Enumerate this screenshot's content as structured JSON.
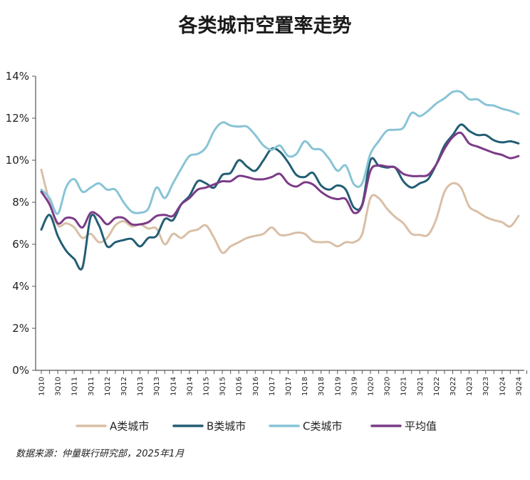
{
  "title": "各类城市空置率走势",
  "source": "数据来源：仲量联行研究部，2025年1月",
  "chart_data": {
    "type": "line",
    "ylim": [
      0,
      14
    ],
    "yticks": [
      0,
      2,
      4,
      6,
      8,
      10,
      12,
      14
    ],
    "ytick_labels": [
      "0%",
      "2%",
      "4%",
      "6%",
      "8%",
      "10%",
      "12%",
      "14%"
    ],
    "grid": false,
    "legend": "bottom",
    "x_labels": [
      "1Q10",
      "3Q10",
      "1Q11",
      "3Q11",
      "1Q12",
      "3Q12",
      "1Q13",
      "3Q13",
      "1Q14",
      "3Q14",
      "1Q15",
      "3Q15",
      "1Q16",
      "3Q16",
      "1Q17",
      "3Q17",
      "1Q18",
      "3Q18",
      "1Q19",
      "3Q19",
      "1Q20",
      "3Q20",
      "1Q21",
      "3Q21",
      "1Q22",
      "3Q22",
      "1Q23",
      "3Q23",
      "1Q24",
      "3Q24"
    ],
    "x_range": [
      0,
      59
    ],
    "series": [
      {
        "name": "A类城市",
        "color": "#d9bfa6",
        "points": [
          [
            0,
            9.55
          ],
          [
            1,
            8.0
          ],
          [
            2,
            6.9
          ],
          [
            3,
            7.0
          ],
          [
            4,
            6.8
          ],
          [
            5,
            6.3
          ],
          [
            6,
            6.5
          ],
          [
            7,
            6.1
          ],
          [
            8,
            6.3
          ],
          [
            9,
            6.9
          ],
          [
            10,
            7.1
          ],
          [
            11,
            6.85
          ],
          [
            12,
            6.95
          ],
          [
            13,
            6.75
          ],
          [
            14,
            6.75
          ],
          [
            15,
            6.0
          ],
          [
            16,
            6.5
          ],
          [
            17,
            6.3
          ],
          [
            18,
            6.6
          ],
          [
            19,
            6.7
          ],
          [
            20,
            6.9
          ],
          [
            21,
            6.3
          ],
          [
            22,
            5.6
          ],
          [
            23,
            5.9
          ],
          [
            24,
            6.1
          ],
          [
            25,
            6.3
          ],
          [
            26,
            6.4
          ],
          [
            27,
            6.5
          ],
          [
            28,
            6.8
          ],
          [
            29,
            6.45
          ],
          [
            30,
            6.45
          ],
          [
            31,
            6.55
          ],
          [
            32,
            6.5
          ],
          [
            33,
            6.15
          ],
          [
            34,
            6.1
          ],
          [
            35,
            6.1
          ],
          [
            36,
            5.9
          ],
          [
            37,
            6.1
          ],
          [
            38,
            6.1
          ],
          [
            39,
            6.5
          ],
          [
            40,
            8.2
          ],
          [
            41,
            8.2
          ],
          [
            42,
            7.7
          ],
          [
            43,
            7.3
          ],
          [
            44,
            7.0
          ],
          [
            45,
            6.5
          ],
          [
            46,
            6.45
          ],
          [
            47,
            6.45
          ],
          [
            48,
            7.2
          ],
          [
            49,
            8.5
          ],
          [
            50,
            8.9
          ],
          [
            51,
            8.7
          ],
          [
            52,
            7.8
          ],
          [
            53,
            7.55
          ],
          [
            54,
            7.3
          ],
          [
            55,
            7.15
          ],
          [
            56,
            7.05
          ],
          [
            57,
            6.85
          ],
          [
            58,
            7.35
          ]
        ]
      },
      {
        "name": "B类城市",
        "color": "#235e74",
        "points": [
          [
            0,
            6.7
          ],
          [
            1,
            7.4
          ],
          [
            2,
            6.4
          ],
          [
            3,
            5.7
          ],
          [
            4,
            5.3
          ],
          [
            5,
            4.9
          ],
          [
            6,
            7.3
          ],
          [
            7,
            6.9
          ],
          [
            8,
            5.9
          ],
          [
            9,
            6.1
          ],
          [
            10,
            6.2
          ],
          [
            11,
            6.25
          ],
          [
            12,
            5.9
          ],
          [
            13,
            6.3
          ],
          [
            14,
            6.4
          ],
          [
            15,
            7.2
          ],
          [
            16,
            7.15
          ],
          [
            17,
            7.9
          ],
          [
            18,
            8.3
          ],
          [
            19,
            9.0
          ],
          [
            20,
            8.9
          ],
          [
            21,
            8.7
          ],
          [
            22,
            9.3
          ],
          [
            23,
            9.4
          ],
          [
            24,
            10.0
          ],
          [
            25,
            9.7
          ],
          [
            26,
            9.5
          ],
          [
            27,
            10.0
          ],
          [
            28,
            10.55
          ],
          [
            29,
            10.4
          ],
          [
            30,
            9.9
          ],
          [
            31,
            9.3
          ],
          [
            32,
            9.2
          ],
          [
            33,
            9.4
          ],
          [
            34,
            8.8
          ],
          [
            35,
            8.6
          ],
          [
            36,
            8.8
          ],
          [
            37,
            8.6
          ],
          [
            38,
            7.75
          ],
          [
            39,
            7.9
          ],
          [
            40,
            10.0
          ],
          [
            41,
            9.75
          ],
          [
            42,
            9.65
          ],
          [
            43,
            9.65
          ],
          [
            44,
            9.0
          ],
          [
            45,
            8.7
          ],
          [
            46,
            8.9
          ],
          [
            47,
            9.1
          ],
          [
            48,
            9.8
          ],
          [
            49,
            10.7
          ],
          [
            50,
            11.2
          ],
          [
            51,
            11.7
          ],
          [
            52,
            11.4
          ],
          [
            53,
            11.2
          ],
          [
            54,
            11.2
          ],
          [
            55,
            10.95
          ],
          [
            56,
            10.85
          ],
          [
            57,
            10.9
          ],
          [
            58,
            10.8
          ]
        ]
      },
      {
        "name": "C类城市",
        "color": "#88c4d6",
        "points": [
          [
            0,
            8.6
          ],
          [
            1,
            8.2
          ],
          [
            2,
            7.45
          ],
          [
            3,
            8.7
          ],
          [
            4,
            9.1
          ],
          [
            5,
            8.5
          ],
          [
            6,
            8.7
          ],
          [
            7,
            8.9
          ],
          [
            8,
            8.6
          ],
          [
            9,
            8.6
          ],
          [
            10,
            8.0
          ],
          [
            11,
            7.55
          ],
          [
            12,
            7.5
          ],
          [
            13,
            7.7
          ],
          [
            14,
            8.7
          ],
          [
            15,
            8.2
          ],
          [
            16,
            8.9
          ],
          [
            17,
            9.6
          ],
          [
            18,
            10.2
          ],
          [
            19,
            10.3
          ],
          [
            20,
            10.6
          ],
          [
            21,
            11.4
          ],
          [
            22,
            11.8
          ],
          [
            23,
            11.65
          ],
          [
            24,
            11.6
          ],
          [
            25,
            11.6
          ],
          [
            26,
            11.2
          ],
          [
            27,
            10.7
          ],
          [
            28,
            10.5
          ],
          [
            29,
            10.7
          ],
          [
            30,
            10.2
          ],
          [
            31,
            10.3
          ],
          [
            32,
            10.9
          ],
          [
            33,
            10.55
          ],
          [
            34,
            10.5
          ],
          [
            35,
            10.05
          ],
          [
            36,
            9.5
          ],
          [
            37,
            9.75
          ],
          [
            38,
            8.85
          ],
          [
            39,
            8.9
          ],
          [
            40,
            10.3
          ],
          [
            41,
            10.9
          ],
          [
            42,
            11.4
          ],
          [
            43,
            11.45
          ],
          [
            44,
            11.55
          ],
          [
            45,
            12.25
          ],
          [
            46,
            12.1
          ],
          [
            47,
            12.35
          ],
          [
            48,
            12.7
          ],
          [
            49,
            12.95
          ],
          [
            50,
            13.25
          ],
          [
            51,
            13.25
          ],
          [
            52,
            12.9
          ],
          [
            53,
            12.9
          ],
          [
            54,
            12.65
          ],
          [
            55,
            12.6
          ],
          [
            56,
            12.45
          ],
          [
            57,
            12.35
          ],
          [
            58,
            12.2
          ]
        ]
      },
      {
        "name": "平均值",
        "color": "#7b3b88",
        "points": [
          [
            0,
            8.5
          ],
          [
            1,
            7.9
          ],
          [
            2,
            7.0
          ],
          [
            3,
            7.25
          ],
          [
            4,
            7.2
          ],
          [
            5,
            6.8
          ],
          [
            6,
            7.5
          ],
          [
            7,
            7.35
          ],
          [
            8,
            6.95
          ],
          [
            9,
            7.25
          ],
          [
            10,
            7.25
          ],
          [
            11,
            6.95
          ],
          [
            12,
            6.95
          ],
          [
            13,
            7.05
          ],
          [
            14,
            7.35
          ],
          [
            15,
            7.4
          ],
          [
            16,
            7.35
          ],
          [
            17,
            7.9
          ],
          [
            18,
            8.2
          ],
          [
            19,
            8.6
          ],
          [
            20,
            8.7
          ],
          [
            21,
            8.85
          ],
          [
            22,
            9.0
          ],
          [
            23,
            9.0
          ],
          [
            24,
            9.25
          ],
          [
            25,
            9.2
          ],
          [
            26,
            9.1
          ],
          [
            27,
            9.1
          ],
          [
            28,
            9.2
          ],
          [
            29,
            9.35
          ],
          [
            30,
            8.9
          ],
          [
            31,
            8.75
          ],
          [
            32,
            8.95
          ],
          [
            33,
            8.85
          ],
          [
            34,
            8.5
          ],
          [
            35,
            8.25
          ],
          [
            36,
            8.15
          ],
          [
            37,
            8.15
          ],
          [
            38,
            7.5
          ],
          [
            39,
            7.85
          ],
          [
            40,
            9.5
          ],
          [
            41,
            9.75
          ],
          [
            42,
            9.7
          ],
          [
            43,
            9.65
          ],
          [
            44,
            9.35
          ],
          [
            45,
            9.25
          ],
          [
            46,
            9.25
          ],
          [
            47,
            9.3
          ],
          [
            48,
            9.8
          ],
          [
            49,
            10.55
          ],
          [
            50,
            11.1
          ],
          [
            51,
            11.3
          ],
          [
            52,
            10.8
          ],
          [
            53,
            10.65
          ],
          [
            54,
            10.5
          ],
          [
            55,
            10.35
          ],
          [
            56,
            10.25
          ],
          [
            57,
            10.1
          ],
          [
            58,
            10.2
          ]
        ]
      }
    ]
  }
}
